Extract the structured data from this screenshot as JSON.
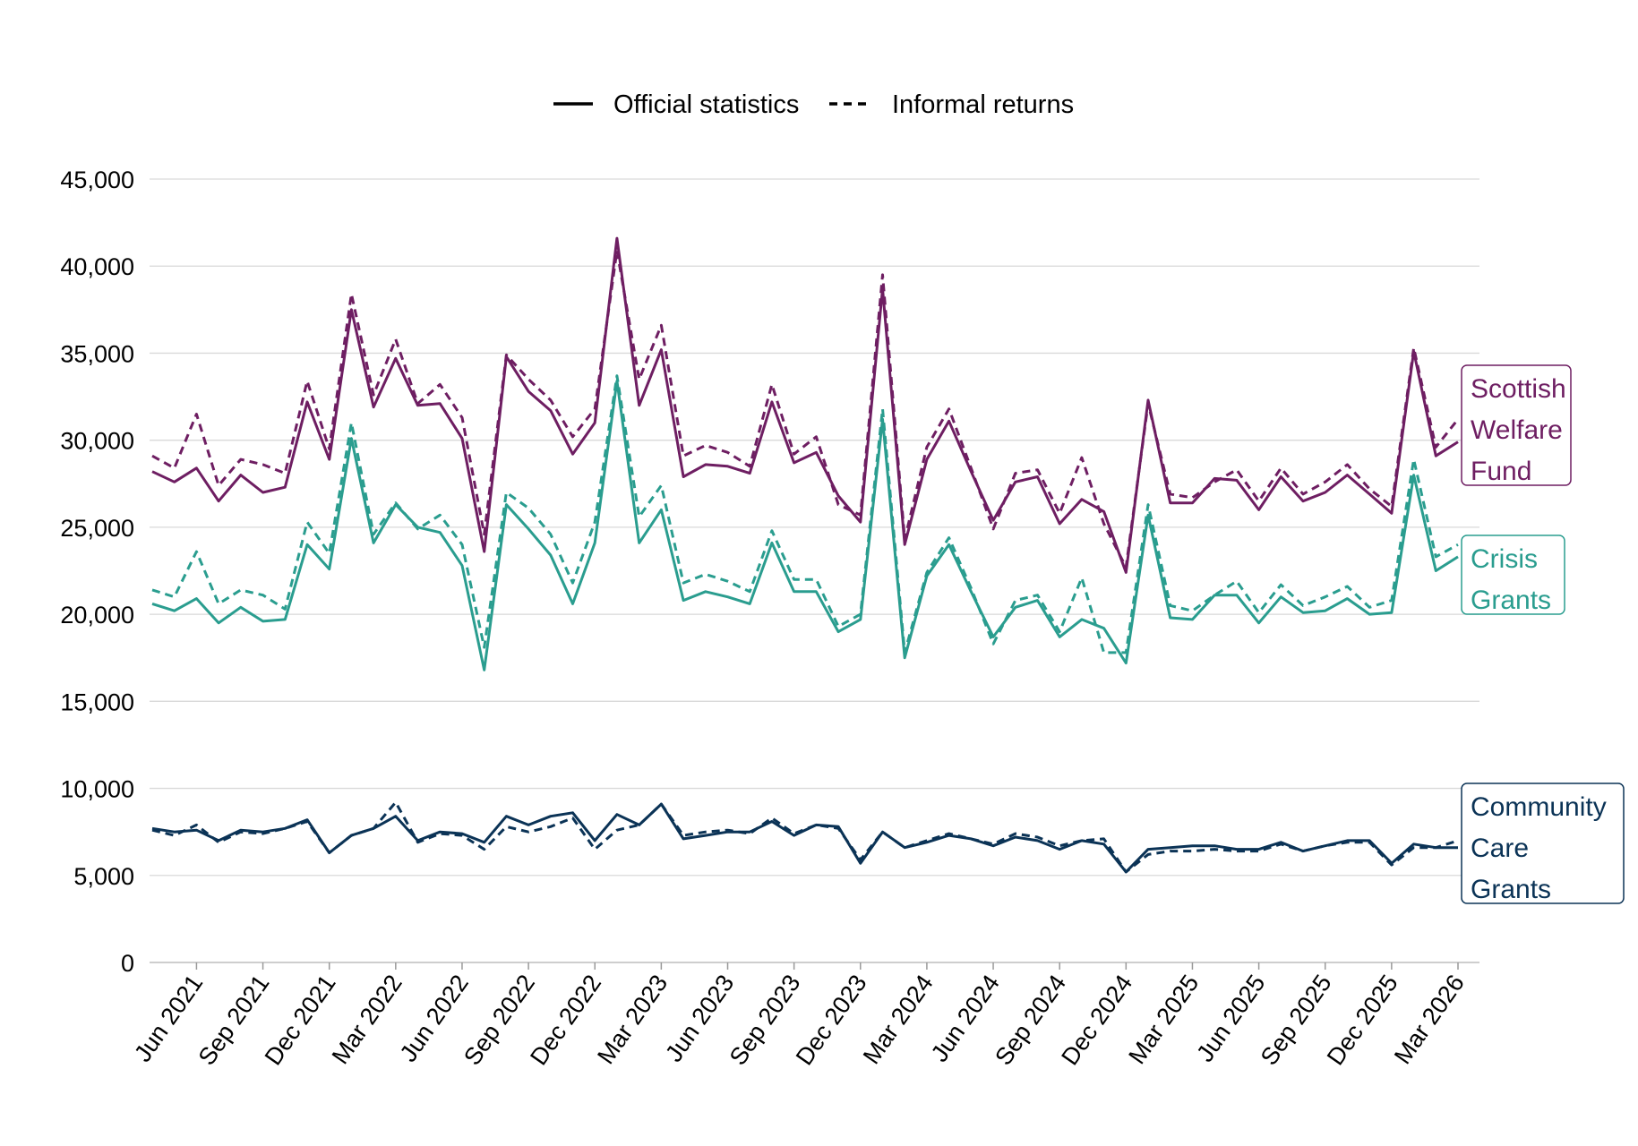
{
  "chart_data": {
    "type": "line",
    "title": "",
    "xlabel": "",
    "ylabel": "",
    "ylim": [
      0,
      45000
    ],
    "y_ticks": [
      0,
      5000,
      10000,
      15000,
      20000,
      25000,
      30000,
      35000,
      40000,
      45000
    ],
    "y_tick_labels": [
      "0",
      "5,000",
      "10,000",
      "15,000",
      "20,000",
      "25,000",
      "30,000",
      "35,000",
      "40,000",
      "45,000"
    ],
    "x_tick_labels": [
      "Jun 2021",
      "Sep 2021",
      "Dec 2021",
      "Mar 2022",
      "Jun 2022",
      "Sep 2022",
      "Dec 2022",
      "Mar 2023",
      "Jun 2023",
      "Sep 2023",
      "Dec 2023",
      "Mar 2024",
      "Jun 2024",
      "Sep 2024",
      "Dec 2024",
      "Mar 2025",
      "Jun 2025",
      "Sep 2025",
      "Dec 2025",
      "Mar 2026"
    ],
    "x_start": "Apr 2021",
    "x_end": "Mar 2026",
    "grid": true,
    "legend": {
      "placement": "top",
      "entries": [
        {
          "label": "Official statistics",
          "style": "solid"
        },
        {
          "label": "Informal returns",
          "style": "dashed"
        }
      ]
    },
    "series": [
      {
        "group": "Scottish Welfare Fund",
        "label_lines": [
          "Scottish",
          "Welfare",
          "Fund"
        ],
        "color": "#6e1e62",
        "official": [
          28200,
          27600,
          28400,
          26500,
          28000,
          27000,
          27300,
          32200,
          28900,
          37500,
          31900,
          34700,
          32000,
          32100,
          30100,
          23600,
          34800,
          32800,
          31700,
          29200,
          31000,
          41600,
          32000,
          35200,
          27900,
          28600,
          28500,
          28100,
          32200,
          28700,
          29300,
          26800,
          25300,
          38700,
          24000,
          28900,
          31100,
          28200,
          25400,
          27600,
          27900,
          25200,
          26600,
          25900,
          22400,
          32300,
          26400,
          26400,
          27800,
          27700,
          26000,
          27900,
          26500,
          27000,
          28000,
          26900,
          25800,
          35100,
          29100,
          29900
        ],
        "informal": [
          29100,
          28400,
          31500,
          27400,
          28900,
          28600,
          28100,
          33400,
          29500,
          38400,
          32600,
          35800,
          32100,
          33200,
          31300,
          24600,
          34900,
          33500,
          32300,
          30200,
          31800,
          40900,
          33500,
          36600,
          29100,
          29700,
          29300,
          28500,
          33200,
          29200,
          30200,
          26300,
          25700,
          39500,
          24300,
          29600,
          31800,
          28400,
          24900,
          28100,
          28300,
          25800,
          29000,
          25200,
          22700,
          32100,
          26900,
          26700,
          27600,
          28300,
          26500,
          28400,
          26900,
          27600,
          28600,
          27200,
          26200,
          35300,
          29600,
          31200
        ]
      },
      {
        "group": "Crisis Grants",
        "label_lines": [
          "Crisis",
          "Grants"
        ],
        "color": "#2a9d8f",
        "official": [
          20600,
          20200,
          20900,
          19500,
          20400,
          19600,
          19700,
          24000,
          22600,
          30100,
          24100,
          26300,
          25000,
          24700,
          22800,
          16800,
          26300,
          24900,
          23400,
          20600,
          24100,
          33400,
          24100,
          26000,
          20800,
          21300,
          21000,
          20600,
          24100,
          21300,
          21300,
          19000,
          19700,
          31200,
          17500,
          22200,
          24000,
          21300,
          18700,
          20400,
          20800,
          18700,
          19700,
          19200,
          17200,
          25700,
          19800,
          19700,
          21100,
          21100,
          19500,
          21000,
          20100,
          20200,
          20900,
          20000,
          20100,
          28000,
          22500,
          23300
        ],
        "informal": [
          21400,
          21000,
          23600,
          20600,
          21400,
          21100,
          20300,
          25300,
          23500,
          31000,
          24600,
          26400,
          24900,
          25700,
          24000,
          18100,
          27000,
          26100,
          24600,
          21800,
          25300,
          33700,
          25600,
          27400,
          21800,
          22300,
          21900,
          21300,
          24800,
          22000,
          22000,
          19300,
          20000,
          31800,
          17800,
          22400,
          24400,
          21500,
          18300,
          20800,
          21100,
          19000,
          22100,
          17800,
          17800,
          26300,
          20500,
          20200,
          21100,
          21900,
          20100,
          21700,
          20500,
          21000,
          21600,
          20400,
          20800,
          28900,
          23300,
          24000
        ]
      },
      {
        "group": "Community Care Grants",
        "label_lines": [
          "Community",
          "Care",
          "Grants"
        ],
        "color": "#0b3356",
        "official": [
          7700,
          7500,
          7600,
          7000,
          7600,
          7500,
          7700,
          8200,
          6300,
          7300,
          7700,
          8400,
          7000,
          7500,
          7400,
          6900,
          8400,
          7900,
          8400,
          8600,
          7000,
          8500,
          7900,
          9100,
          7100,
          7300,
          7500,
          7500,
          8100,
          7300,
          7900,
          7800,
          5700,
          7500,
          6600,
          6900,
          7300,
          7100,
          6700,
          7200,
          7000,
          6500,
          7000,
          6800,
          5200,
          6500,
          6600,
          6700,
          6700,
          6500,
          6500,
          6900,
          6400,
          6700,
          7000,
          7000,
          5700,
          6800,
          6600,
          6600
        ],
        "informal": [
          7600,
          7300,
          7900,
          6900,
          7500,
          7400,
          7700,
          8100,
          6300,
          7300,
          7700,
          9200,
          6900,
          7400,
          7300,
          6500,
          7800,
          7500,
          7800,
          8300,
          6500,
          7600,
          7900,
          9100,
          7300,
          7500,
          7600,
          7400,
          8300,
          7400,
          7900,
          7700,
          5900,
          7500,
          6600,
          7000,
          7400,
          7100,
          6800,
          7400,
          7200,
          6700,
          7000,
          7100,
          5200,
          6200,
          6400,
          6400,
          6500,
          6400,
          6400,
          6800,
          6400,
          6700,
          6900,
          6900,
          5600,
          6600,
          6600,
          7000
        ]
      }
    ]
  }
}
